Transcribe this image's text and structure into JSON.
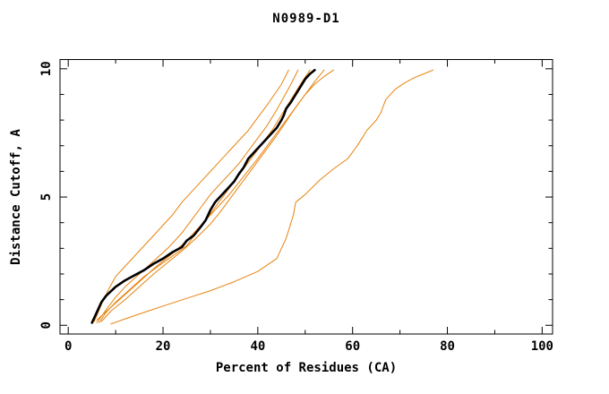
{
  "title": "N0989-D1",
  "chart_data": {
    "type": "line",
    "title": "N0989-D1",
    "xlabel": "Percent of Residues (CA)",
    "ylabel": "Distance Cutoff, A",
    "grid": false,
    "legend": "none",
    "colors": {
      "highlight_series": "#000000",
      "other_series": "#E8820E"
    },
    "x_axis": {
      "min": -1.74,
      "max": 102.2,
      "major_ticks": [
        0,
        20,
        40,
        60,
        80,
        100
      ],
      "major_tick_labels": [
        "0",
        "20",
        "40",
        "60",
        "80",
        "100"
      ],
      "minor_ticks": [
        10,
        30,
        50,
        70,
        90
      ]
    },
    "y_axis": {
      "min": -0.34,
      "max": 10.36,
      "major_ticks": [
        0,
        5,
        10
      ],
      "major_tick_labels": [
        "0",
        "5",
        "10"
      ],
      "minor_ticks": [
        1,
        2,
        3,
        4,
        6,
        7,
        8,
        9
      ]
    },
    "series": [
      {
        "name": "orange-model-1",
        "color": "#E8820E",
        "width": 1,
        "points": [
          [
            5.5,
            0.15
          ],
          [
            7,
            0.8
          ],
          [
            8.5,
            1.4
          ],
          [
            10,
            1.9
          ],
          [
            12,
            2.3
          ],
          [
            14,
            2.7
          ],
          [
            16,
            3.1
          ],
          [
            18,
            3.5
          ],
          [
            20,
            3.9
          ],
          [
            22,
            4.3
          ],
          [
            24,
            4.8
          ],
          [
            26,
            5.2
          ],
          [
            28,
            5.6
          ],
          [
            30,
            6.0
          ],
          [
            32,
            6.4
          ],
          [
            34,
            6.8
          ],
          [
            36,
            7.2
          ],
          [
            38,
            7.6
          ],
          [
            40,
            8.1
          ],
          [
            42,
            8.6
          ],
          [
            43.5,
            9.0
          ],
          [
            45,
            9.4
          ],
          [
            46.5,
            9.95
          ]
        ]
      },
      {
        "name": "orange-model-2",
        "color": "#E8820E",
        "width": 1,
        "points": [
          [
            6,
            0.1
          ],
          [
            8,
            0.6
          ],
          [
            10,
            1.1
          ],
          [
            12,
            1.5
          ],
          [
            15,
            2.0
          ],
          [
            18,
            2.5
          ],
          [
            21,
            3.0
          ],
          [
            24,
            3.6
          ],
          [
            26,
            4.1
          ],
          [
            28,
            4.6
          ],
          [
            30,
            5.1
          ],
          [
            32,
            5.5
          ],
          [
            34,
            5.9
          ],
          [
            36,
            6.3
          ],
          [
            38,
            6.8
          ],
          [
            40,
            7.3
          ],
          [
            42,
            7.8
          ],
          [
            44,
            8.4
          ],
          [
            45.5,
            8.9
          ],
          [
            47,
            9.4
          ],
          [
            48.5,
            9.95
          ]
        ]
      },
      {
        "name": "orange-model-3",
        "color": "#E8820E",
        "width": 1,
        "points": [
          [
            6.5,
            0.1
          ],
          [
            8,
            0.5
          ],
          [
            10,
            0.9
          ],
          [
            13,
            1.4
          ],
          [
            16,
            1.9
          ],
          [
            19,
            2.3
          ],
          [
            22,
            2.7
          ],
          [
            25,
            3.1
          ],
          [
            27,
            3.6
          ],
          [
            29,
            4.1
          ],
          [
            31,
            4.6
          ],
          [
            33,
            5.1
          ],
          [
            35,
            5.6
          ],
          [
            37,
            6.1
          ],
          [
            39,
            6.6
          ],
          [
            41,
            7.1
          ],
          [
            43,
            7.6
          ],
          [
            45,
            8.2
          ],
          [
            47,
            8.8
          ],
          [
            49,
            9.4
          ],
          [
            51,
            9.95
          ]
        ]
      },
      {
        "name": "orange-model-4",
        "color": "#E8820E",
        "width": 1,
        "points": [
          [
            7,
            0.15
          ],
          [
            9,
            0.55
          ],
          [
            12,
            1.0
          ],
          [
            15,
            1.5
          ],
          [
            18,
            2.0
          ],
          [
            21,
            2.45
          ],
          [
            24,
            2.9
          ],
          [
            27,
            3.4
          ],
          [
            30,
            3.95
          ],
          [
            32,
            4.4
          ],
          [
            34,
            4.9
          ],
          [
            36,
            5.4
          ],
          [
            38,
            5.9
          ],
          [
            40,
            6.4
          ],
          [
            42,
            6.9
          ],
          [
            44,
            7.4
          ],
          [
            46,
            7.95
          ],
          [
            48,
            8.5
          ],
          [
            50,
            9.0
          ],
          [
            52,
            9.5
          ],
          [
            54,
            9.95
          ]
        ]
      },
      {
        "name": "orange-model-5",
        "color": "#E8820E",
        "width": 1,
        "points": [
          [
            6,
            0.2
          ],
          [
            9,
            0.7
          ],
          [
            12,
            1.2
          ],
          [
            15,
            1.7
          ],
          [
            18,
            2.2
          ],
          [
            22,
            2.8
          ],
          [
            25,
            3.3
          ],
          [
            28,
            3.9
          ],
          [
            31,
            4.5
          ],
          [
            34,
            5.1
          ],
          [
            37,
            5.8
          ],
          [
            40,
            6.5
          ],
          [
            42,
            7.0
          ],
          [
            44,
            7.5
          ],
          [
            46,
            8.0
          ],
          [
            48,
            8.5
          ],
          [
            50,
            9.0
          ],
          [
            52,
            9.4
          ],
          [
            54,
            9.7
          ],
          [
            56,
            9.95
          ]
        ]
      },
      {
        "name": "orange-model-6-outlier",
        "color": "#E8820E",
        "width": 1,
        "points": [
          [
            9,
            0.05
          ],
          [
            12,
            0.25
          ],
          [
            16,
            0.5
          ],
          [
            20,
            0.75
          ],
          [
            25,
            1.05
          ],
          [
            30,
            1.35
          ],
          [
            35,
            1.7
          ],
          [
            40,
            2.1
          ],
          [
            44,
            2.6
          ],
          [
            46,
            3.4
          ],
          [
            47.5,
            4.3
          ],
          [
            48,
            4.8
          ],
          [
            50,
            5.1
          ],
          [
            53,
            5.65
          ],
          [
            56,
            6.1
          ],
          [
            59,
            6.5
          ],
          [
            61,
            7.0
          ],
          [
            63,
            7.6
          ],
          [
            65,
            8.0
          ],
          [
            66,
            8.3
          ],
          [
            67,
            8.8
          ],
          [
            69,
            9.2
          ],
          [
            71,
            9.45
          ],
          [
            73,
            9.65
          ],
          [
            75,
            9.8
          ],
          [
            77,
            9.95
          ]
        ]
      },
      {
        "name": "black-model-highlight",
        "color": "#000000",
        "width": 2.6,
        "points": [
          [
            5,
            0.1
          ],
          [
            6,
            0.5
          ],
          [
            7,
            0.9
          ],
          [
            8,
            1.15
          ],
          [
            10,
            1.5
          ],
          [
            12,
            1.75
          ],
          [
            14,
            1.95
          ],
          [
            16,
            2.15
          ],
          [
            18,
            2.4
          ],
          [
            20,
            2.6
          ],
          [
            22,
            2.85
          ],
          [
            24,
            3.05
          ],
          [
            25,
            3.3
          ],
          [
            26.5,
            3.5
          ],
          [
            28,
            3.85
          ],
          [
            29,
            4.1
          ],
          [
            30,
            4.5
          ],
          [
            31,
            4.8
          ],
          [
            32,
            5.0
          ],
          [
            33.5,
            5.3
          ],
          [
            35,
            5.6
          ],
          [
            36,
            5.9
          ],
          [
            37,
            6.15
          ],
          [
            38,
            6.5
          ],
          [
            39.5,
            6.8
          ],
          [
            41,
            7.1
          ],
          [
            42.5,
            7.4
          ],
          [
            44,
            7.7
          ],
          [
            45,
            8.0
          ],
          [
            45.5,
            8.2
          ],
          [
            46,
            8.45
          ],
          [
            47,
            8.7
          ],
          [
            48,
            9.0
          ],
          [
            49,
            9.3
          ],
          [
            50,
            9.6
          ],
          [
            51,
            9.8
          ],
          [
            52,
            9.95
          ]
        ]
      }
    ]
  }
}
